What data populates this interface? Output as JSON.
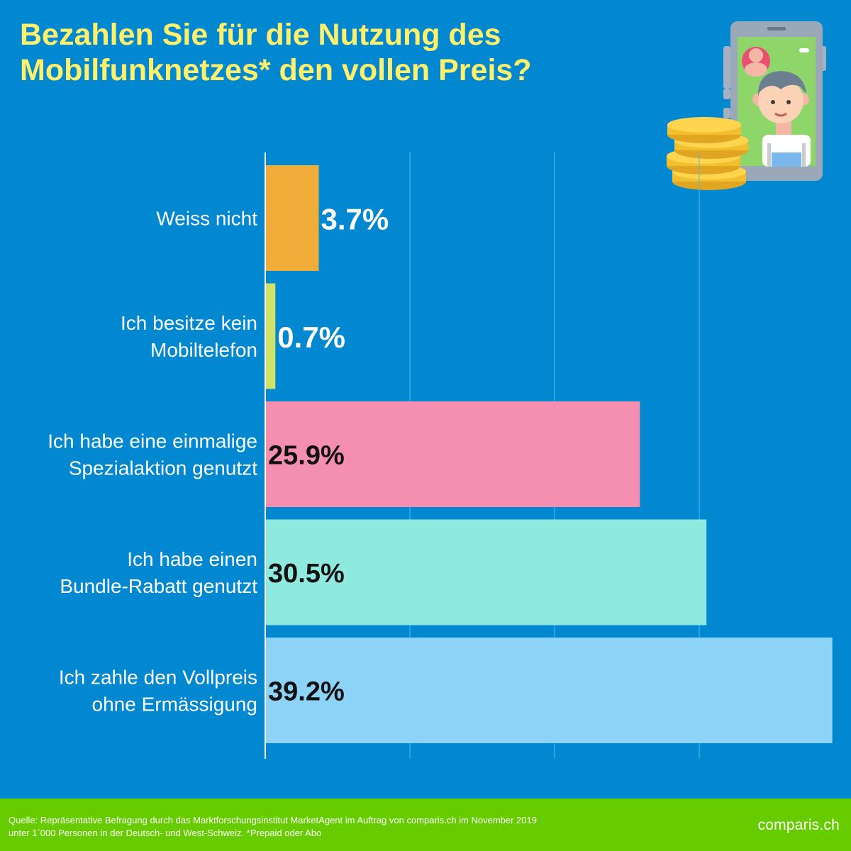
{
  "header": {
    "title_line1": "Bezahlen Sie für die Nutzung des",
    "title_line2": "Mobilfunknetzes* den vollen Preis?"
  },
  "chart_data": {
    "type": "bar",
    "orientation": "horizontal",
    "categories": [
      [
        "Weiss nicht"
      ],
      [
        "Ich besitze kein",
        "Mobiltelefon"
      ],
      [
        "Ich habe eine einmalige",
        "Spezialaktion genutzt"
      ],
      [
        "Ich habe einen",
        "Bundle-Rabatt genutzt"
      ],
      [
        "Ich zahle den Vollpreis",
        "ohne Ermässigung"
      ]
    ],
    "values": [
      3.7,
      0.7,
      25.9,
      30.5,
      39.2
    ],
    "value_labels": [
      "3.7%",
      "0.7%",
      "25.9%",
      "30.5%",
      "39.2%"
    ],
    "colors": [
      "#f0ad3a",
      "#cfe36a",
      "#f48fb1",
      "#8eeadf",
      "#8dd3f7"
    ],
    "label_colors": [
      "#ffffff",
      "#ffffff",
      "#111111",
      "#111111",
      "#111111"
    ],
    "xlim": [
      0,
      40
    ],
    "gridlines_at": [
      0,
      10,
      20,
      30
    ],
    "grid": true,
    "legend": "none"
  },
  "footer": {
    "source_line1": "Quelle: Repräsentative Befragung durch das Marktforschungsinstitut MarketAgent im Auftrag von comparis.ch im November 2019",
    "source_line2": "unter 1´000 Personen in der Deutsch- und West-Schweiz. *Prepaid oder Abo",
    "logo": "comparis.ch"
  },
  "colors": {
    "background": "#0288d1",
    "title": "#fff06b",
    "footer": "#66cc00"
  },
  "icons": [
    "phone-user-illustration",
    "coin-stack-icon"
  ]
}
